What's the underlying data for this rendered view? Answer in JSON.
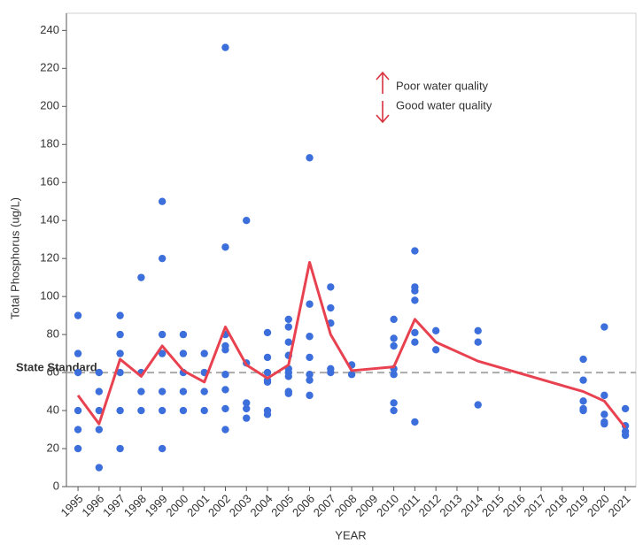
{
  "chart_data": {
    "type": "scatter",
    "x_label": "YEAR",
    "y_label": "Total Phosphorus (ug/L)",
    "xlim": [
      1994.45,
      2021.5
    ],
    "ylim": [
      0,
      249
    ],
    "xticks": [
      1995,
      1996,
      1997,
      1998,
      1999,
      2000,
      2001,
      2002,
      2003,
      2004,
      2005,
      2006,
      2007,
      2008,
      2009,
      2010,
      2011,
      2012,
      2013,
      2014,
      2015,
      2016,
      2017,
      2018,
      2019,
      2020,
      2021
    ],
    "yticks": [
      0,
      20,
      40,
      60,
      80,
      100,
      120,
      140,
      160,
      180,
      200,
      220,
      240
    ],
    "point_color": "#3d6fdc",
    "line_color": "#e8414f",
    "groups": [
      {
        "x": 1995,
        "values": [
          90,
          70,
          60,
          40,
          30,
          20
        ]
      },
      {
        "x": 1996,
        "values": [
          60,
          50,
          40,
          30,
          10
        ]
      },
      {
        "x": 1997,
        "values": [
          90,
          80,
          70,
          60,
          40,
          20
        ]
      },
      {
        "x": 1998,
        "values": [
          110,
          60,
          50,
          40
        ]
      },
      {
        "x": 1999,
        "values": [
          150,
          120,
          80,
          70,
          50,
          40,
          20
        ]
      },
      {
        "x": 2000,
        "values": [
          80,
          70,
          60,
          50,
          40
        ]
      },
      {
        "x": 2001,
        "values": [
          70,
          60,
          50,
          40
        ]
      },
      {
        "x": 2002,
        "values": [
          231,
          126,
          80,
          74,
          72,
          59,
          51,
          41,
          30
        ]
      },
      {
        "x": 2003,
        "values": [
          140,
          65,
          44,
          41,
          36
        ]
      },
      {
        "x": 2004,
        "values": [
          81,
          68,
          60,
          56,
          55,
          40,
          38
        ]
      },
      {
        "x": 2005,
        "values": [
          88,
          84,
          76,
          69,
          62,
          60,
          58,
          50,
          49
        ]
      },
      {
        "x": 2006,
        "values": [
          173,
          96,
          79,
          68,
          59,
          56,
          48
        ]
      },
      {
        "x": 2007,
        "values": [
          105,
          94,
          86,
          62,
          60
        ]
      },
      {
        "x": 2008,
        "values": [
          64,
          59
        ]
      },
      {
        "x": 2010,
        "values": [
          88,
          78,
          74,
          62,
          59,
          44,
          40
        ]
      },
      {
        "x": 2011,
        "values": [
          124,
          105,
          103,
          98,
          81,
          76,
          34
        ]
      },
      {
        "x": 2012,
        "values": [
          82,
          72
        ]
      },
      {
        "x": 2014,
        "values": [
          82,
          76,
          43
        ]
      },
      {
        "x": 2019,
        "values": [
          67,
          56,
          45,
          41,
          40
        ]
      },
      {
        "x": 2020,
        "values": [
          84,
          48,
          38,
          34,
          33
        ]
      },
      {
        "x": 2021,
        "values": [
          41,
          32,
          29,
          27
        ]
      }
    ],
    "line": {
      "x": [
        1995,
        1996,
        1997,
        1998,
        1999,
        2000,
        2001,
        2002,
        2003,
        2004,
        2005,
        2006,
        2007,
        2008,
        2010,
        2011,
        2012,
        2014,
        2019,
        2020,
        2021
      ],
      "y": [
        48,
        33,
        67,
        58,
        74,
        61,
        55,
        84,
        64,
        57,
        64,
        118,
        80,
        61,
        63,
        88,
        76,
        66,
        50,
        45,
        31
      ]
    },
    "reference_line": {
      "value": 60,
      "label": "State Standard",
      "color": "#aaaaaa"
    },
    "annotations": [
      "Poor water quality",
      "Good water quality"
    ]
  }
}
